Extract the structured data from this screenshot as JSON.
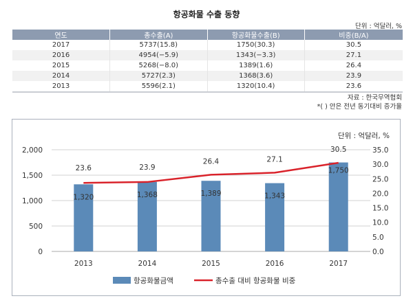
{
  "title": "항공화물 수출 동향",
  "unit": "단위 : 억달러, %",
  "table": {
    "headers": [
      "연도",
      "총수출(A)",
      "항공화물수출(B)",
      "비중(B/A)"
    ],
    "rows": [
      [
        "2017",
        "5737(15.8)",
        "1750(30.3)",
        "30.5"
      ],
      [
        "2016",
        "4954(−5.9)",
        "1343(−3.3)",
        "27.1"
      ],
      [
        "2015",
        "5268(−8.0)",
        "1389(1.6)",
        "26.4"
      ],
      [
        "2014",
        "5727(2.3)",
        "1368(3.6)",
        "23.9"
      ],
      [
        "2013",
        "5596(2.1)",
        "1320(10.4)",
        "23.6"
      ]
    ]
  },
  "source": "자료 : 한국무역협회",
  "footnote": "*( ) 안은 전년 동기대비 증가율",
  "chart_data": {
    "type": "bar+line",
    "unit": "단위 : 억달러, %",
    "categories": [
      "2013",
      "2014",
      "2015",
      "2016",
      "2017"
    ],
    "series": [
      {
        "name": "항공화물금액",
        "type": "bar",
        "axis": "left",
        "color": "#5b8ab8",
        "values": [
          1320,
          1368,
          1389,
          1343,
          1750
        ],
        "labels": [
          "1,320",
          "1,368",
          "1,389",
          "1,343",
          "1,750"
        ]
      },
      {
        "name": "총수출 대비 항공화물 비중",
        "type": "line",
        "axis": "right",
        "color": "#d9222a",
        "values": [
          23.6,
          23.9,
          26.4,
          27.1,
          30.5
        ],
        "labels": [
          "23.6",
          "23.9",
          "26.4",
          "27.1",
          "30.5"
        ]
      }
    ],
    "y_left": {
      "range": [
        0,
        2000
      ],
      "ticks": [
        "0",
        "500",
        "1,000",
        "1,500",
        "2,000"
      ]
    },
    "y_right": {
      "range": [
        0,
        35
      ],
      "ticks": [
        "0.0",
        "5.0",
        "10.0",
        "15.0",
        "20.0",
        "25.0",
        "30.0",
        "35.0"
      ]
    },
    "grid": true,
    "legend": "bottom"
  }
}
